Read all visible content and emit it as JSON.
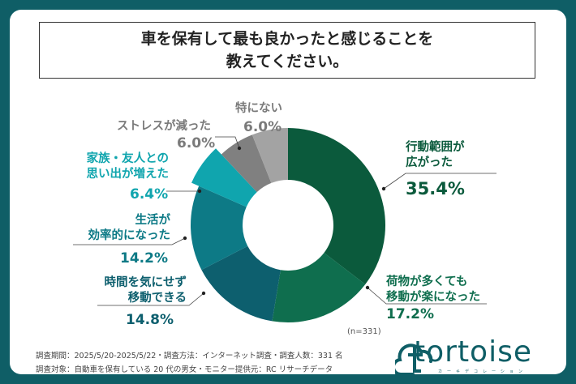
{
  "title": {
    "line1": "車を保有して最も良かったと感じることを",
    "line2": "教えてください。"
  },
  "chart_data": {
    "type": "pie",
    "subtype": "donut",
    "title": "車を保有して最も良かったと感じることを教えてください。",
    "n_label": "(n=331)",
    "slices": [
      {
        "label_lines": [
          "行動範囲が",
          "広がった"
        ],
        "label": "行動範囲が広がった",
        "value": 35.4,
        "value_label": "35.4%",
        "color": "#0b5a3c",
        "text_color": "#0b5a3c"
      },
      {
        "label_lines": [
          "荷物が多くても",
          "移動が楽になった"
        ],
        "label": "荷物が多くても移動が楽になった",
        "value": 17.2,
        "value_label": "17.2%",
        "color": "#0f6e4e",
        "text_color": "#0f6e4e"
      },
      {
        "label_lines": [
          "時間を気にせず",
          "移動できる"
        ],
        "label": "時間を気にせず移動できる",
        "value": 14.8,
        "value_label": "14.8%",
        "color": "#0d5f6e",
        "text_color": "#0d5f6e"
      },
      {
        "label_lines": [
          "生活が",
          "効率的になった"
        ],
        "label": "生活が効率的になった",
        "value": 14.2,
        "value_label": "14.2%",
        "color": "#0d7a86",
        "text_color": "#0d7a86"
      },
      {
        "label_lines": [
          "家族・友人との",
          "思い出が増えた"
        ],
        "label": "家族・友人との思い出が増えた",
        "value": 6.4,
        "value_label": "6.4%",
        "color": "#10a5ae",
        "text_color": "#10a5ae",
        "exploded": true
      },
      {
        "label_lines": [
          "ストレスが減った"
        ],
        "label": "ストレスが減った",
        "value": 6.0,
        "value_label": "6.0%",
        "color": "#808080",
        "text_color": "#7a7a7a"
      },
      {
        "label_lines": [
          "特にない"
        ],
        "label": "特にない",
        "value": 6.0,
        "value_label": "6.0%",
        "color": "#a3a3a3",
        "text_color": "#7a7a7a"
      }
    ]
  },
  "footer": {
    "line1": "調査期間：2025/5/20-2025/5/22・調査方法：インターネット調査・調査人数：331 名",
    "line2": "調査対象：自動車を保有している 20 代の男女・モニター提供元：RC リサーチデータ"
  },
  "logo": {
    "text": "tortoise",
    "sub": "カーキデコレーション"
  }
}
